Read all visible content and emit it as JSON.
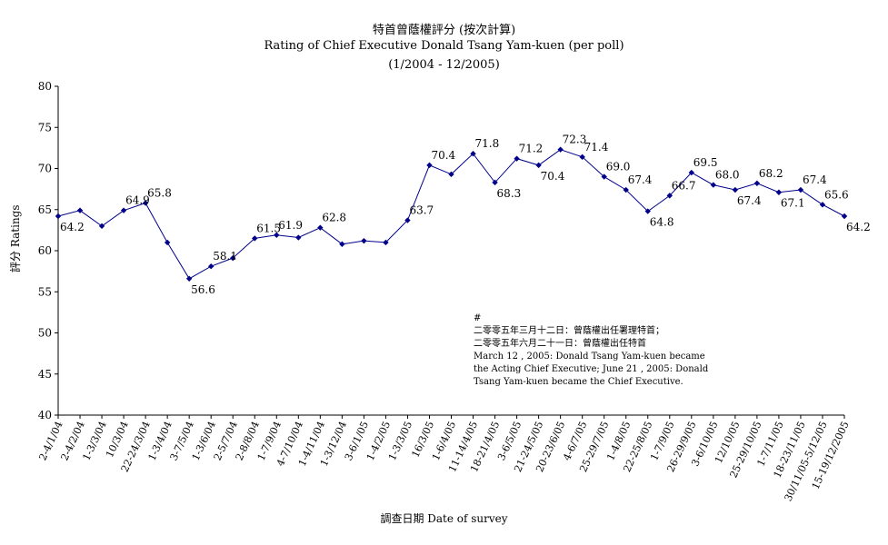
{
  "chart_data": {
    "type": "line",
    "title": "特首曾蔭權評分 (按次計算)",
    "subtitle": "Rating of Chief Executive Donald Tsang Yam-kuen  (per poll)",
    "subtitle2": "(1/2004 - 12/2005)",
    "xlabel": "調查日期 Date of survey",
    "ylabel": "評分 Ratings",
    "ylim": [
      40,
      80
    ],
    "yticks": [
      40,
      45,
      50,
      55,
      60,
      65,
      70,
      75,
      80
    ],
    "grid": false,
    "line_color": "#00008B",
    "categories": [
      "2-4/1/04",
      "2-4/2/04",
      "1-3/3/04",
      "10/3/04",
      "22-24/3/04",
      "1-3/4/04",
      "3-7/5/04",
      "1-3/6/04",
      "2-5/7/04",
      "2-8/8/04",
      "1-7/9/04",
      "4-7/10/04",
      "1-4/11/04",
      "1-3/12/04",
      "3-6/1/05",
      "1-4/2/05",
      "1-3/3/05",
      "16/3/05",
      "1-6/4/05",
      "11-14/4/05",
      "18-21/4/05",
      "3-6/5/05",
      "21-24/5/05",
      "20-23/6/05",
      "4-6/7/05",
      "25-29/7/05",
      "1-4/8/05",
      "22-25/8/05",
      "1-7/9/05",
      "26-29/9/05",
      "3-6/10/05",
      "12/10/05",
      "25-29/10/05",
      "1-7/11/05",
      "18-23/11/05",
      "30/11/05-5/12/05",
      "15-19/12/2005"
    ],
    "series": [
      {
        "values": [
          64.2,
          64.9,
          63.0,
          64.9,
          65.8,
          61.0,
          56.6,
          58.1,
          59.1,
          61.5,
          61.9,
          61.6,
          62.8,
          60.8,
          61.2,
          61.0,
          63.7,
          70.4,
          69.3,
          71.8,
          68.3,
          71.2,
          70.4,
          72.3,
          71.4,
          69.0,
          67.4,
          64.8,
          66.7,
          69.5,
          68.0,
          67.4,
          68.2,
          67.1,
          67.4,
          65.6,
          64.2
        ]
      }
    ],
    "data_labels": [
      {
        "i": 0,
        "text": "64.2"
      },
      {
        "i": 3,
        "text": "64.9"
      },
      {
        "i": 4,
        "text": "65.8"
      },
      {
        "i": 6,
        "text": "56.6"
      },
      {
        "i": 7,
        "text": "58.1"
      },
      {
        "i": 9,
        "text": "61.5"
      },
      {
        "i": 10,
        "text": "61.9"
      },
      {
        "i": 12,
        "text": "62.8"
      },
      {
        "i": 16,
        "text": "63.7"
      },
      {
        "i": 17,
        "text": "70.4"
      },
      {
        "i": 19,
        "text": "71.8"
      },
      {
        "i": 20,
        "text": "68.3"
      },
      {
        "i": 21,
        "text": "71.2"
      },
      {
        "i": 22,
        "text": "70.4"
      },
      {
        "i": 23,
        "text": "72.3"
      },
      {
        "i": 24,
        "text": "71.4"
      },
      {
        "i": 25,
        "text": "69.0"
      },
      {
        "i": 26,
        "text": "67.4"
      },
      {
        "i": 27,
        "text": "64.8"
      },
      {
        "i": 28,
        "text": "66.7"
      },
      {
        "i": 29,
        "text": "69.5"
      },
      {
        "i": 30,
        "text": "68.0"
      },
      {
        "i": 31,
        "text": "67.4"
      },
      {
        "i": 32,
        "text": "68.2"
      },
      {
        "i": 33,
        "text": "67.1"
      },
      {
        "i": 34,
        "text": "67.4"
      },
      {
        "i": 35,
        "text": "65.6"
      },
      {
        "i": 36,
        "text": "64.2"
      }
    ],
    "annotation": {
      "mark": "#",
      "line1": "二零零五年三月十二日：曾蔭權出任署理特首；",
      "line2": "二零零五年六月二十一日：曾蔭權出任特首",
      "english": "March 12 , 2005: Donald  Tsang Yam-kuen became the Acting Chief Executive; June 21 , 2005: Donald Tsang Yam-kuen became the Chief Executive."
    }
  }
}
